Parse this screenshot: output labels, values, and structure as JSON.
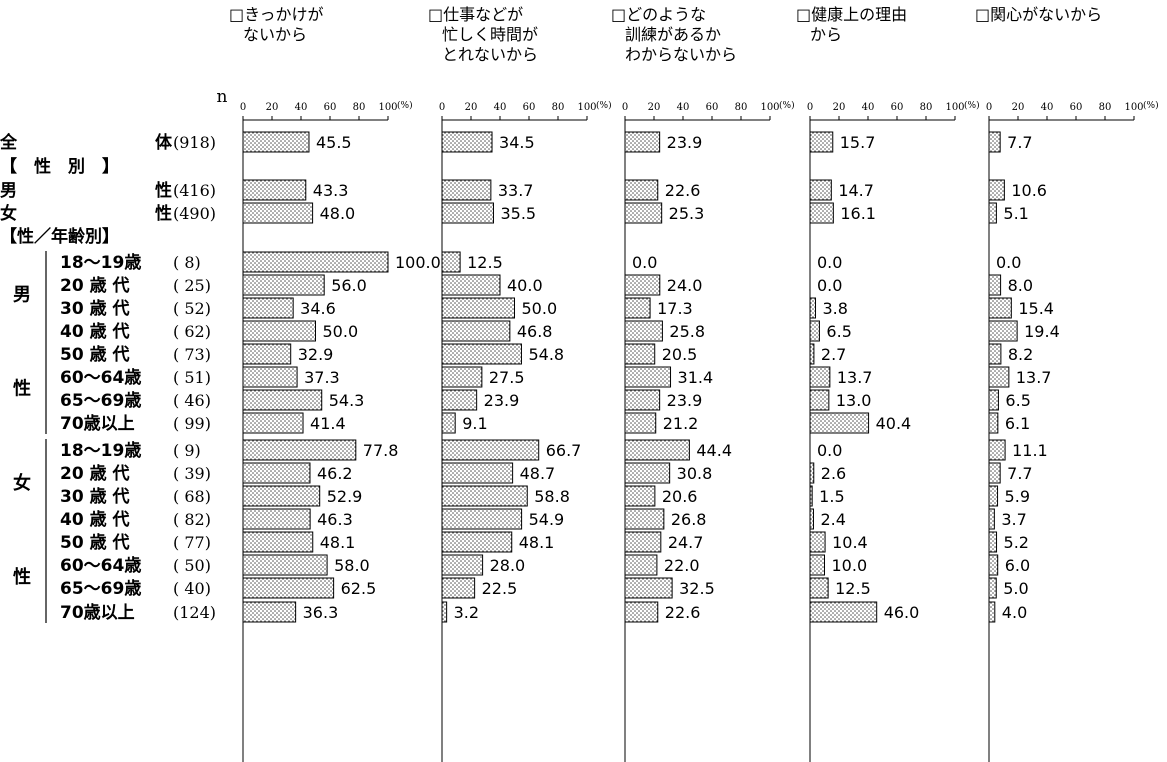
{
  "header": {
    "n_label": "n",
    "axis_ticks": [
      "0",
      "20",
      "40",
      "60",
      "80",
      "100"
    ],
    "axis_unit": "(%)"
  },
  "chart_data": {
    "type": "bar",
    "orientation": "horizontal",
    "xlim": [
      0,
      100
    ],
    "grid": false,
    "panels": [
      {
        "title_lines": [
          "□きっかけが",
          "ないから"
        ]
      },
      {
        "title_lines": [
          "□仕事などが",
          "忙しく時間が",
          "とれないから"
        ]
      },
      {
        "title_lines": [
          "□どのような",
          "訓練があるか",
          "わからないから"
        ]
      },
      {
        "title_lines": [
          "□健康上の理由",
          "から"
        ]
      },
      {
        "title_lines": [
          "□関心がないから"
        ]
      }
    ],
    "rows": [
      {
        "kind": "total",
        "label_left": "全",
        "label_right": "体",
        "n": "(918)",
        "values": [
          45.5,
          34.5,
          23.9,
          15.7,
          7.7
        ]
      },
      {
        "kind": "section",
        "label": "【　性　別　】"
      },
      {
        "kind": "total",
        "label_left": "男",
        "label_right": "性",
        "n": "(416)",
        "values": [
          43.3,
          33.7,
          22.6,
          14.7,
          10.6
        ]
      },
      {
        "kind": "total",
        "label_left": "女",
        "label_right": "性",
        "n": "(490)",
        "values": [
          48.0,
          35.5,
          25.3,
          16.1,
          5.1
        ]
      },
      {
        "kind": "section",
        "label": "【性／年齢別】"
      },
      {
        "kind": "sub",
        "group": 0,
        "label": "18～19歳",
        "n": "(  8)",
        "values": [
          100.0,
          12.5,
          0.0,
          0.0,
          0.0
        ]
      },
      {
        "kind": "sub",
        "group": 0,
        "label": "20 歳 代",
        "n": "( 25)",
        "values": [
          56.0,
          40.0,
          24.0,
          0.0,
          8.0
        ]
      },
      {
        "kind": "sub",
        "group": 0,
        "label": "30 歳 代",
        "n": "( 52)",
        "values": [
          34.6,
          50.0,
          17.3,
          3.8,
          15.4
        ]
      },
      {
        "kind": "sub",
        "group": 0,
        "label": "40 歳 代",
        "n": "( 62)",
        "values": [
          50.0,
          46.8,
          25.8,
          6.5,
          19.4
        ]
      },
      {
        "kind": "sub",
        "group": 0,
        "label": "50 歳 代",
        "n": "( 73)",
        "values": [
          32.9,
          54.8,
          20.5,
          2.7,
          8.2
        ]
      },
      {
        "kind": "sub",
        "group": 0,
        "label": "60～64歳",
        "n": "( 51)",
        "values": [
          37.3,
          27.5,
          31.4,
          13.7,
          13.7
        ]
      },
      {
        "kind": "sub",
        "group": 0,
        "label": "65～69歳",
        "n": "( 46)",
        "values": [
          54.3,
          23.9,
          23.9,
          13.0,
          6.5
        ]
      },
      {
        "kind": "sub",
        "group": 0,
        "label": "70歳以上",
        "n": "( 99)",
        "values": [
          41.4,
          9.1,
          21.2,
          40.4,
          6.1
        ]
      },
      {
        "kind": "sub",
        "group": 1,
        "label": "18～19歳",
        "n": "(  9)",
        "values": [
          77.8,
          66.7,
          44.4,
          0.0,
          11.1
        ]
      },
      {
        "kind": "sub",
        "group": 1,
        "label": "20 歳 代",
        "n": "( 39)",
        "values": [
          46.2,
          48.7,
          30.8,
          2.6,
          7.7
        ]
      },
      {
        "kind": "sub",
        "group": 1,
        "label": "30 歳 代",
        "n": "( 68)",
        "values": [
          52.9,
          58.8,
          20.6,
          1.5,
          5.9
        ]
      },
      {
        "kind": "sub",
        "group": 1,
        "label": "40 歳 代",
        "n": "( 82)",
        "values": [
          46.3,
          54.9,
          26.8,
          2.4,
          3.7
        ]
      },
      {
        "kind": "sub",
        "group": 1,
        "label": "50 歳 代",
        "n": "( 77)",
        "values": [
          48.1,
          48.1,
          24.7,
          10.4,
          5.2
        ]
      },
      {
        "kind": "sub",
        "group": 1,
        "label": "60～64歳",
        "n": "( 50)",
        "values": [
          58.0,
          28.0,
          22.0,
          10.0,
          6.0
        ]
      },
      {
        "kind": "sub",
        "group": 1,
        "label": "65～69歳",
        "n": "( 40)",
        "values": [
          62.5,
          22.5,
          32.5,
          12.5,
          5.0
        ]
      },
      {
        "kind": "sub",
        "group": 1,
        "label": "70歳以上",
        "n": "(124)",
        "values": [
          36.3,
          3.2,
          22.6,
          46.0,
          4.0
        ]
      }
    ],
    "groups": [
      {
        "char_top": "男",
        "char_bottom": "性"
      },
      {
        "char_top": "女",
        "char_bottom": "性"
      }
    ]
  }
}
